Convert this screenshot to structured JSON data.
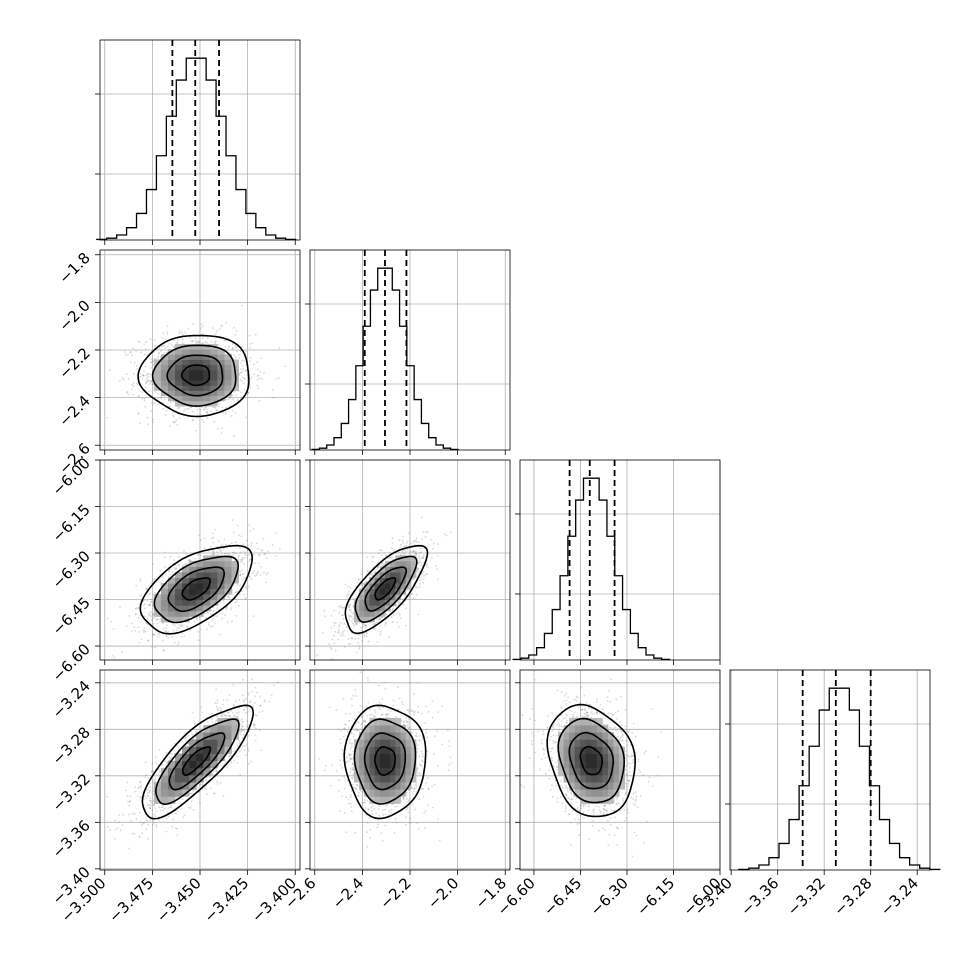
{
  "chart_data": {
    "type": "corner",
    "params": [
      {
        "range": [
          -3.5025,
          -3.3975
        ],
        "ticks": [
          -3.5,
          -3.475,
          -3.45,
          -3.425,
          -3.4
        ],
        "tick_labels": [
          "−3.500",
          "−3.475",
          "−3.450",
          "−3.425",
          "−3.400"
        ],
        "mean": -3.452,
        "sd": 0.0145,
        "quantiles": [
          -3.4645,
          -3.4525,
          -3.44
        ]
      },
      {
        "range": [
          -2.62,
          -1.78
        ],
        "ticks": [
          -2.6,
          -2.4,
          -2.2,
          -2.0,
          -1.8
        ],
        "tick_labels": [
          "−2.6",
          "−2.4",
          "−2.2",
          "−2.0",
          "−1.8"
        ],
        "mean": -2.305,
        "sd": 0.085,
        "quantiles": [
          -2.39,
          -2.305,
          -2.215
        ]
      },
      {
        "range": [
          -6.645,
          -6.0
        ],
        "ticks": [
          -6.6,
          -6.45,
          -6.3,
          -6.15,
          -6.0
        ],
        "tick_labels": [
          "−6.60",
          "−6.45",
          "−6.30",
          "−6.15",
          "−6.00"
        ],
        "mean": -6.415,
        "sd": 0.07,
        "quantiles": [
          -6.485,
          -6.42,
          -6.34
        ]
      },
      {
        "range": [
          -3.401,
          -3.229
        ],
        "ticks": [
          -3.4,
          -3.36,
          -3.32,
          -3.28,
          -3.24
        ],
        "tick_labels": [
          "−3.40",
          "−3.36",
          "−3.32",
          "−3.28",
          "−3.24"
        ],
        "mean": -3.307,
        "sd": 0.024,
        "quantiles": [
          -3.3385,
          -3.31,
          -3.28
        ]
      }
    ],
    "correlation": [
      [
        1.0,
        0.0,
        0.55,
        0.8
      ],
      [
        0.0,
        1.0,
        0.72,
        0.0
      ],
      [
        0.55,
        0.72,
        1.0,
        -0.2
      ],
      [
        0.8,
        0.0,
        -0.2,
        1.0
      ]
    ],
    "histogram_bins": 20,
    "contour_levels": [
      "0.5 sigma",
      "1 sigma",
      "1.5 sigma",
      "2 sigma"
    ],
    "grid": true,
    "colors": {
      "points": "#808080",
      "lines": "#000000"
    }
  }
}
